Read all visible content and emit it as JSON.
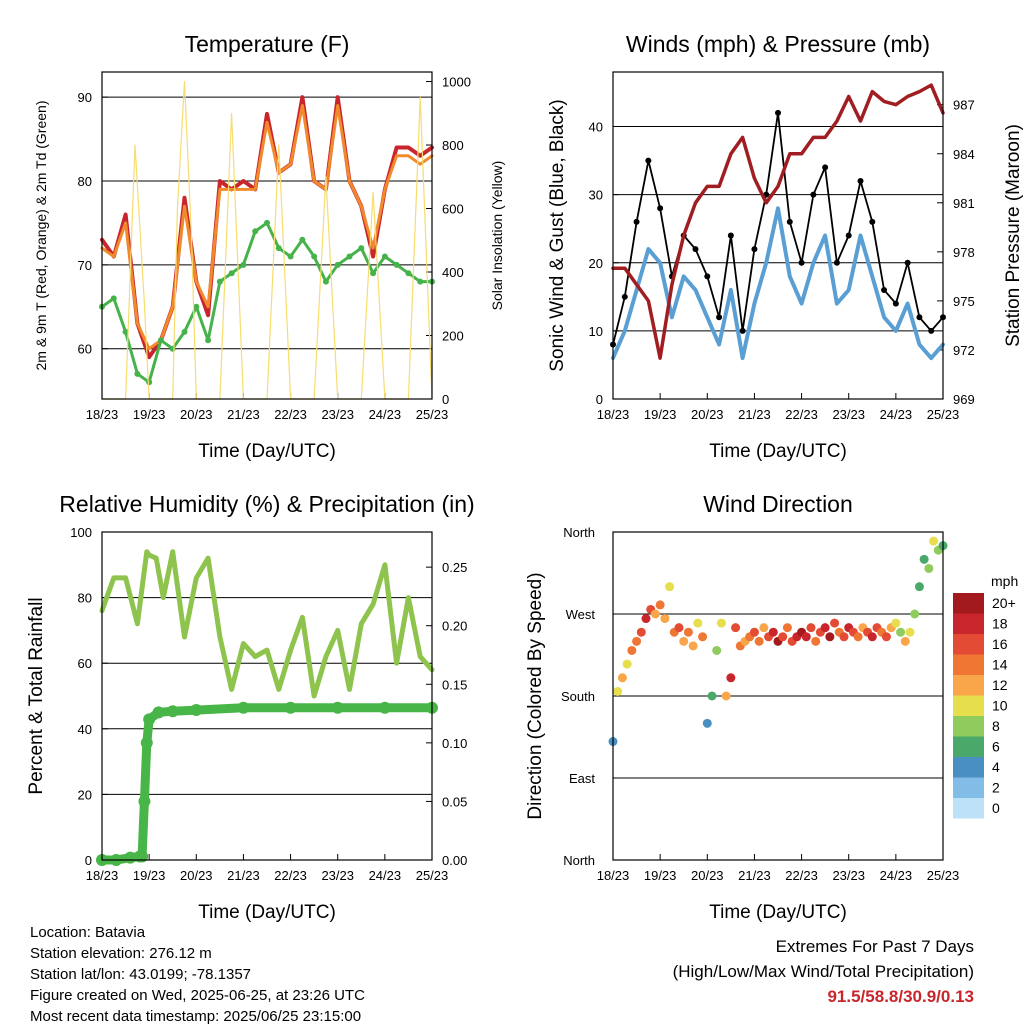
{
  "colors": {
    "temp2m": "#c8262c",
    "temp9m": "#f08a2c",
    "dewpoint": "#45b34a",
    "solar": "#f7dc6f",
    "wind": "#5a9fd4",
    "gust": "#000000",
    "pressure": "#a01e22",
    "rh": "#8ec44d",
    "rain": "#48b548",
    "extremes": "#c8262c"
  },
  "info": {
    "location": "Location: Batavia",
    "elevation": "Station elevation: 276.12 m",
    "latlon": "Station lat/lon: 43.0199; -78.1357",
    "created": "Figure created on Wed, 2025-06-25, at 23:26 UTC",
    "recent": "Most recent data timestamp: 2025/06/25 23:15:00"
  },
  "extremes": {
    "title": "Extremes For Past 7 Days",
    "subtitle": "(High/Low/Max Wind/Total Precipitation)",
    "values": "91.5/58.8/30.9/0.13"
  },
  "chart_data": [
    {
      "type": "line",
      "title": "Temperature (F)",
      "xlabel": "Time (Day/UTC)",
      "ylabel": "2m & 9m T (Red, Orange) & 2m Td (Green)",
      "y2label": "Solar Insolation (Yellow)",
      "x_ticks": [
        "18/23",
        "19/23",
        "20/23",
        "21/23",
        "22/23",
        "23/23",
        "24/23",
        "25/23"
      ],
      "ylim": [
        54,
        93
      ],
      "y_ticks": [
        60,
        70,
        80,
        90
      ],
      "y2lim": [
        0,
        1030
      ],
      "y2_ticks": [
        0,
        200,
        400,
        600,
        800,
        1000
      ],
      "grid": true,
      "series": [
        {
          "name": "2m T",
          "axis": "left",
          "x": [
            0,
            0.25,
            0.5,
            0.75,
            1,
            1.25,
            1.5,
            1.75,
            2,
            2.25,
            2.5,
            2.75,
            3,
            3.25,
            3.5,
            3.75,
            4,
            4.25,
            4.5,
            4.75,
            5,
            5.25,
            5.5,
            5.75,
            6,
            6.25,
            6.5,
            6.75,
            7
          ],
          "values": [
            73,
            71,
            76,
            63,
            59,
            61,
            65,
            78,
            68,
            64,
            80,
            79,
            80,
            79,
            88,
            81,
            82,
            90,
            80,
            79,
            90,
            80,
            77,
            71,
            79,
            84,
            84,
            83,
            84
          ]
        },
        {
          "name": "9m T",
          "axis": "left",
          "x": [
            0,
            0.25,
            0.5,
            0.75,
            1,
            1.25,
            1.5,
            1.75,
            2,
            2.25,
            2.5,
            2.75,
            3,
            3.25,
            3.5,
            3.75,
            4,
            4.25,
            4.5,
            4.75,
            5,
            5.25,
            5.5,
            5.75,
            6,
            6.25,
            6.5,
            6.75,
            7
          ],
          "values": [
            72,
            71,
            75,
            63,
            60,
            61,
            65,
            77,
            68,
            65,
            79,
            79,
            79,
            79,
            87,
            81,
            82,
            89,
            80,
            79,
            89,
            80,
            77,
            72,
            79,
            83,
            83,
            82,
            83
          ]
        },
        {
          "name": "2m Td",
          "axis": "left",
          "x": [
            0,
            0.25,
            0.5,
            0.75,
            1,
            1.25,
            1.5,
            1.75,
            2,
            2.25,
            2.5,
            2.75,
            3,
            3.25,
            3.5,
            3.75,
            4,
            4.25,
            4.5,
            4.75,
            5,
            5.25,
            5.5,
            5.75,
            6,
            6.25,
            6.5,
            6.75,
            7
          ],
          "values": [
            65,
            66,
            62,
            57,
            56,
            61,
            60,
            62,
            65,
            61,
            68,
            69,
            70,
            74,
            75,
            72,
            71,
            73,
            71,
            68,
            70,
            71,
            72,
            69,
            71,
            70,
            69,
            68,
            68
          ]
        },
        {
          "name": "Solar",
          "axis": "right",
          "x": [
            0,
            0.5,
            0.7,
            0.9,
            1.0,
            1.5,
            1.6,
            1.75,
            1.9,
            2.0,
            2.5,
            2.75,
            3.0,
            3.5,
            3.75,
            4.0,
            4.5,
            4.75,
            5.0,
            5.5,
            5.75,
            6.0,
            6.5,
            6.75,
            7.0
          ],
          "values": [
            0,
            0,
            800,
            300,
            0,
            0,
            600,
            1000,
            500,
            0,
            0,
            900,
            0,
            0,
            800,
            0,
            0,
            700,
            0,
            0,
            650,
            0,
            0,
            950,
            0
          ]
        }
      ]
    },
    {
      "type": "line",
      "title": "Winds (mph) & Pressure (mb)",
      "xlabel": "Time (Day/UTC)",
      "ylabel": "Sonic Wind & Gust (Blue, Black)",
      "y2label": "Station Pressure (Maroon)",
      "x_ticks": [
        "18/23",
        "19/23",
        "20/23",
        "21/23",
        "22/23",
        "23/23",
        "24/23",
        "25/23"
      ],
      "ylim": [
        0,
        48
      ],
      "y_ticks": [
        0,
        10,
        20,
        30,
        40
      ],
      "y2lim": [
        969,
        989
      ],
      "y2_ticks": [
        969,
        972,
        975,
        978,
        981,
        984,
        987
      ],
      "grid": true,
      "series": [
        {
          "name": "Wind",
          "axis": "left",
          "x": [
            0,
            0.25,
            0.5,
            0.75,
            1,
            1.25,
            1.5,
            1.75,
            2,
            2.25,
            2.5,
            2.75,
            3,
            3.25,
            3.5,
            3.75,
            4,
            4.25,
            4.5,
            4.75,
            5,
            5.25,
            5.5,
            5.75,
            6,
            6.25,
            6.5,
            6.75,
            7
          ],
          "values": [
            6,
            10,
            16,
            22,
            20,
            12,
            18,
            16,
            12,
            8,
            16,
            6,
            14,
            20,
            28,
            18,
            14,
            20,
            24,
            14,
            16,
            24,
            18,
            12,
            10,
            14,
            8,
            6,
            8
          ]
        },
        {
          "name": "Gust",
          "axis": "left",
          "x": [
            0,
            0.25,
            0.5,
            0.75,
            1,
            1.25,
            1.5,
            1.75,
            2,
            2.25,
            2.5,
            2.75,
            3,
            3.25,
            3.5,
            3.75,
            4,
            4.25,
            4.5,
            4.75,
            5,
            5.25,
            5.5,
            5.75,
            6,
            6.25,
            6.5,
            6.75,
            7
          ],
          "values": [
            8,
            15,
            26,
            35,
            28,
            18,
            24,
            22,
            18,
            12,
            24,
            10,
            22,
            30,
            42,
            26,
            20,
            30,
            34,
            20,
            24,
            32,
            26,
            16,
            14,
            20,
            12,
            10,
            12
          ]
        },
        {
          "name": "Pressure",
          "axis": "right",
          "x": [
            0,
            0.25,
            0.5,
            0.75,
            1,
            1.25,
            1.5,
            1.75,
            2,
            2.25,
            2.5,
            2.75,
            3,
            3.25,
            3.5,
            3.75,
            4,
            4.25,
            4.5,
            4.75,
            5,
            5.25,
            5.5,
            5.75,
            6,
            6.25,
            6.5,
            6.75,
            7
          ],
          "values": [
            977,
            977,
            976,
            975,
            971.5,
            976,
            979,
            981,
            982,
            982,
            984,
            985,
            982.5,
            981,
            982,
            984,
            984,
            985,
            985,
            986,
            987.5,
            986,
            987.8,
            987.2,
            987,
            987.5,
            987.8,
            988.2,
            986.5
          ]
        }
      ]
    },
    {
      "type": "line",
      "title": "Relative Humidity (%) & Precipitation (in)",
      "xlabel": "Time (Day/UTC)",
      "ylabel": "Percent & Total Rainfall",
      "x_ticks": [
        "18/23",
        "19/23",
        "20/23",
        "21/23",
        "22/23",
        "23/23",
        "24/23",
        "25/23"
      ],
      "ylim": [
        0,
        100
      ],
      "y_ticks": [
        0,
        20,
        40,
        60,
        80,
        100
      ],
      "y2lim": [
        0,
        0.28
      ],
      "y2_ticks": [
        "0.00",
        "0.05",
        "0.10",
        "0.15",
        "0.20",
        "0.25"
      ],
      "grid": true,
      "series": [
        {
          "name": "RH",
          "axis": "left",
          "x": [
            0,
            0.25,
            0.5,
            0.75,
            0.95,
            1.0,
            1.15,
            1.3,
            1.5,
            1.75,
            2.0,
            2.25,
            2.5,
            2.75,
            3.0,
            3.25,
            3.5,
            3.75,
            4.0,
            4.25,
            4.5,
            4.75,
            5.0,
            5.25,
            5.5,
            5.75,
            6.0,
            6.25,
            6.5,
            6.75,
            7.0
          ],
          "values": [
            76,
            86,
            86,
            72,
            94,
            93,
            92,
            80,
            94,
            68,
            86,
            92,
            68,
            52,
            66,
            62,
            64,
            52,
            64,
            74,
            50,
            62,
            70,
            52,
            72,
            78,
            90,
            60,
            80,
            62,
            58
          ]
        },
        {
          "name": "Rain",
          "axis": "right",
          "x": [
            0,
            0.3,
            0.6,
            0.8,
            0.85,
            0.9,
            0.95,
            1.0,
            1.2,
            1.5,
            2.0,
            3.0,
            4.0,
            5.0,
            6.0,
            7.0
          ],
          "values": [
            0,
            0,
            0.002,
            0.003,
            0.003,
            0.05,
            0.1,
            0.12,
            0.126,
            0.127,
            0.128,
            0.13,
            0.13,
            0.13,
            0.13,
            0.13
          ]
        }
      ]
    },
    {
      "type": "scatter",
      "title": "Wind Direction",
      "xlabel": "Time (Day/UTC)",
      "ylabel": "Direction (Colored By Speed)",
      "x_ticks": [
        "18/23",
        "19/23",
        "20/23",
        "21/23",
        "22/23",
        "23/23",
        "24/23",
        "25/23"
      ],
      "y_ticks": [
        "North",
        "East",
        "South",
        "West",
        "North"
      ],
      "ylim": [
        0,
        360
      ],
      "grid": true,
      "legend": {
        "title": "mph",
        "labels": [
          "20+",
          "18",
          "16",
          "14",
          "12",
          "10",
          "8",
          "6",
          "4",
          "2",
          "0"
        ],
        "colors": [
          "#a21a1e",
          "#c8262c",
          "#e34b34",
          "#f07634",
          "#f9a64b",
          "#e6de4c",
          "#8fcc5d",
          "#4ba86b",
          "#4a8fc2",
          "#82bde8",
          "#bde2f7"
        ],
        "placement": "right"
      },
      "x": [
        0.0,
        0.1,
        0.2,
        0.3,
        0.4,
        0.5,
        0.6,
        0.7,
        0.8,
        0.9,
        1.0,
        1.1,
        1.2,
        1.3,
        1.4,
        1.5,
        1.6,
        1.7,
        1.8,
        1.9,
        2.0,
        2.1,
        2.2,
        2.3,
        2.4,
        2.5,
        2.6,
        2.7,
        2.8,
        2.9,
        3.0,
        3.1,
        3.2,
        3.3,
        3.4,
        3.5,
        3.6,
        3.7,
        3.8,
        3.9,
        4.0,
        4.1,
        4.2,
        4.3,
        4.4,
        4.5,
        4.6,
        4.7,
        4.8,
        4.9,
        5.0,
        5.1,
        5.2,
        5.3,
        5.4,
        5.5,
        5.6,
        5.7,
        5.8,
        5.9,
        6.0,
        6.1,
        6.2,
        6.3,
        6.4,
        6.5,
        6.6,
        6.7,
        6.8,
        6.9,
        7.0
      ],
      "values": [
        130,
        185,
        200,
        215,
        230,
        240,
        250,
        265,
        275,
        270,
        280,
        265,
        300,
        250,
        255,
        240,
        250,
        235,
        260,
        245,
        150,
        180,
        230,
        260,
        180,
        200,
        255,
        235,
        240,
        245,
        250,
        240,
        255,
        245,
        250,
        240,
        245,
        255,
        240,
        245,
        250,
        245,
        255,
        240,
        250,
        255,
        245,
        260,
        250,
        245,
        255,
        250,
        245,
        255,
        250,
        245,
        255,
        250,
        245,
        255,
        260,
        250,
        240,
        250,
        270,
        300,
        330,
        320,
        350,
        340,
        345
      ],
      "speeds": [
        4,
        10,
        12,
        10,
        14,
        14,
        16,
        18,
        16,
        12,
        14,
        12,
        10,
        14,
        16,
        12,
        14,
        12,
        10,
        14,
        4,
        6,
        8,
        10,
        12,
        18,
        16,
        14,
        12,
        14,
        16,
        14,
        12,
        16,
        18,
        20,
        16,
        14,
        16,
        18,
        20,
        18,
        16,
        14,
        16,
        18,
        20,
        16,
        14,
        16,
        18,
        16,
        14,
        12,
        16,
        18,
        16,
        14,
        16,
        12,
        10,
        8,
        12,
        10,
        8,
        6,
        6,
        8,
        10,
        8,
        6
      ]
    }
  ]
}
